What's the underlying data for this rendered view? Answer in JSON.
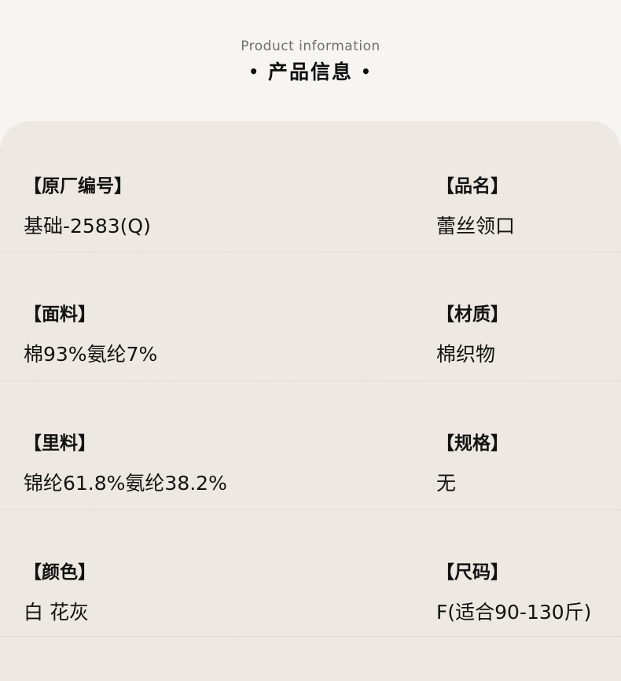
{
  "header": {
    "subtitle": "Product information",
    "title": "产品信息",
    "dot": "•"
  },
  "card": {
    "rows": [
      {
        "left": {
          "label": "【原厂编号】",
          "value": "基础-2583(Q)"
        },
        "right": {
          "label": "【品名】",
          "value": "蕾丝领口"
        }
      },
      {
        "left": {
          "label": "【面料】",
          "value": "棉93%氨纶7%"
        },
        "right": {
          "label": "【材质】",
          "value": "棉织物"
        }
      },
      {
        "left": {
          "label": "【里料】",
          "value": "锦纶61.8%氨纶38.2%"
        },
        "right": {
          "label": "【规格】",
          "value": "无"
        }
      },
      {
        "left": {
          "label": "【颜色】",
          "value": "白 花灰"
        },
        "right": {
          "label": "【尺码】",
          "value": "F(适合90-130斤)"
        }
      }
    ]
  },
  "colors": {
    "page_bg": "#f6f5f4",
    "card_bg": "#ede9e2",
    "divider": "#d9d5ce",
    "subtitle_color": "#6e6e6e",
    "text_color": "#121212"
  }
}
